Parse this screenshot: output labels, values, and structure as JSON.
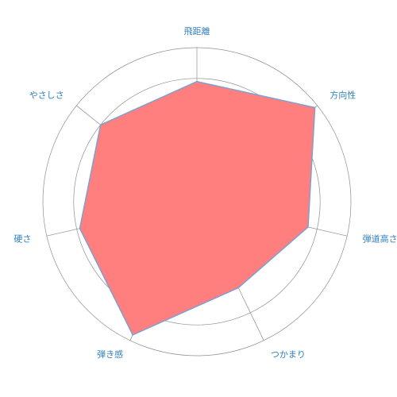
{
  "chart_data": {
    "type": "radar",
    "axes": [
      "飛距離",
      "方向性",
      "弾道高さ",
      "つかまり",
      "弾き感",
      "硬さ",
      "やさしさ"
    ],
    "series": [
      {
        "values": [
          3.9,
          4.9,
          3.7,
          3.1,
          4.8,
          3.9,
          4.0
        ]
      }
    ],
    "rlim": [
      0,
      5
    ],
    "ring_count": 5,
    "grid": true,
    "colors": {
      "fill": "#ff7f7f",
      "stroke": "#7f9fd0",
      "grid": "#8f8f8f",
      "label": "#2f7fbf"
    }
  }
}
